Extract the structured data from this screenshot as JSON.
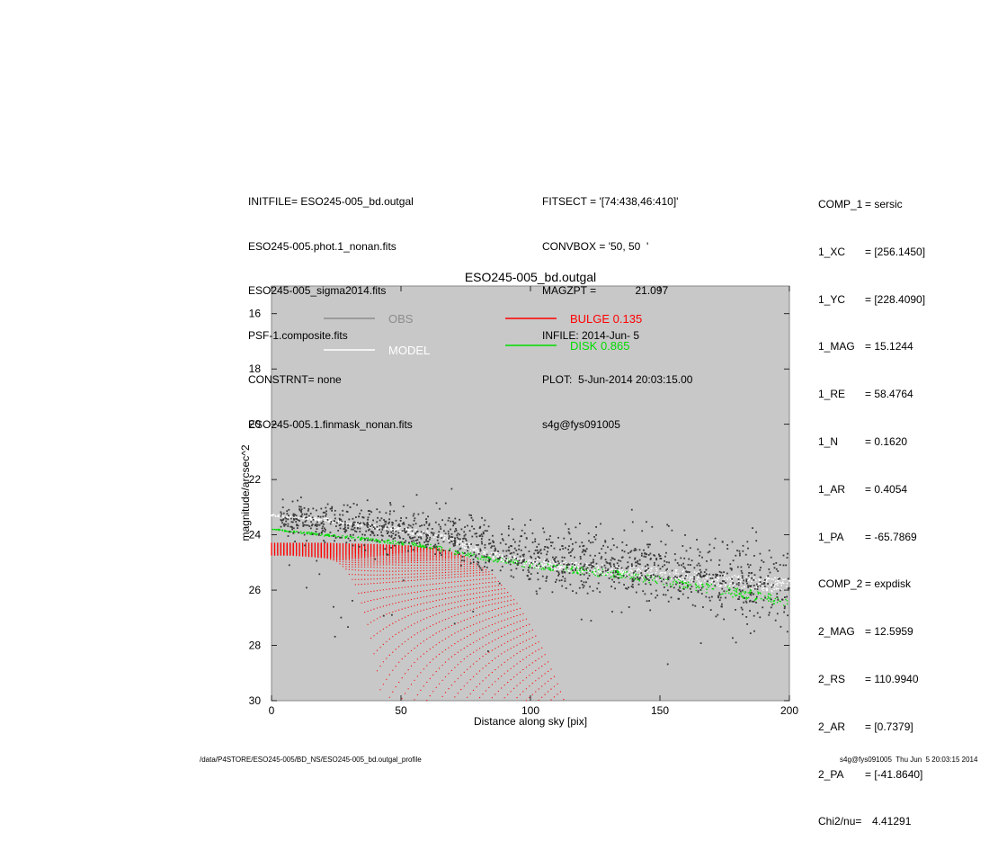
{
  "header": {
    "left": [
      "INITFILE= ESO245-005_bd.outgal",
      "ESO245-005.phot.1_nonan.fits",
      "ESO245-005_sigma2014.fits",
      "PSF-1.composite.fits",
      "CONSTRNT= none",
      "ESO245-005.1.finmask_nonan.fits"
    ],
    "middle": [
      "FITSECT = '[74:438,46:410]'",
      "CONVBOX = '50, 50  '",
      "MAGZPT =             21.097",
      "INFILE: 2014-Jun- 5",
      "PLOT:  5-Jun-2014 20:03:15.00",
      "s4g@fys091005"
    ]
  },
  "params": [
    {
      "key": "COMP_1",
      "val": "= sersic"
    },
    {
      "key": "1_XC",
      "val": "= [256.1450]"
    },
    {
      "key": "1_YC",
      "val": "= [228.4090]"
    },
    {
      "key": "1_MAG",
      "val": "= 15.1244"
    },
    {
      "key": "1_RE",
      "val": "= 58.4764"
    },
    {
      "key": "1_N",
      "val": "= 0.1620"
    },
    {
      "key": "1_AR",
      "val": "= 0.4054"
    },
    {
      "key": "1_PA",
      "val": "= -65.7869"
    },
    {
      "key": "COMP_2",
      "val": "= expdisk"
    },
    {
      "key": "2_MAG",
      "val": "= 12.5959"
    },
    {
      "key": "2_RS",
      "val": "= 110.9940"
    },
    {
      "key": "2_AR",
      "val": "= [0.7379]"
    },
    {
      "key": "2_PA",
      "val": "= [-41.8640]"
    },
    {
      "key": "Chi2/nu=",
      "val": "4.41291"
    }
  ],
  "footer": {
    "left": "/data/P4STORE/ESO245-005/BD_NS/ESO245-005_bd.outgal_profile",
    "right": "s4g@fys091005  Thu Jun  5 20:03:15 2014"
  },
  "chart_data": {
    "type": "scatter",
    "title": "ESO245-005_bd.outgal",
    "xlabel": "Distance along sky [pix]",
    "ylabel": "magnitude/arcsec^2",
    "xlim": [
      0,
      200
    ],
    "ylim": [
      30,
      15
    ],
    "y_inverted": true,
    "x_ticks": [
      0,
      50,
      100,
      150,
      200
    ],
    "y_ticks": [
      16,
      18,
      20,
      22,
      24,
      26,
      28,
      30
    ],
    "background": "#c8c8c8",
    "legend": [
      {
        "label": "OBS",
        "color": "#8c8c8c"
      },
      {
        "label": "MODEL",
        "color": "#ffffff"
      },
      {
        "label": "BULGE  0.135",
        "color": "#ff0000"
      },
      {
        "label": "DISK  0.865",
        "color": "#00dd00"
      }
    ],
    "series": [
      {
        "name": "OBS",
        "color": "#3a3a3a",
        "x": [
          5,
          20,
          30,
          40,
          50,
          60,
          70,
          80,
          90,
          100,
          110,
          120,
          130,
          140,
          150,
          160,
          170,
          180,
          190,
          200
        ],
        "y": [
          23.4,
          23.5,
          23.6,
          23.7,
          23.8,
          23.9,
          24.0,
          24.3,
          24.6,
          24.8,
          24.9,
          25.0,
          25.1,
          25.2,
          25.3,
          25.4,
          25.5,
          25.6,
          25.7,
          25.8
        ]
      },
      {
        "name": "MODEL",
        "color": "#ffffff",
        "x": [
          0,
          20,
          40,
          60,
          70,
          80,
          90,
          100,
          120,
          140,
          160,
          180,
          200
        ],
        "y": [
          23.3,
          23.45,
          23.7,
          23.95,
          24.2,
          24.55,
          24.85,
          25.0,
          25.2,
          25.35,
          25.5,
          25.7,
          25.85
        ]
      },
      {
        "name": "BULGE  0.135",
        "color": "#ff0000",
        "x": [
          0,
          20,
          40,
          55,
          65,
          75,
          85,
          95,
          100,
          105,
          110,
          113
        ],
        "y": [
          24.3,
          24.3,
          24.35,
          24.4,
          24.5,
          24.8,
          25.4,
          26.5,
          27.3,
          28.2,
          29.3,
          30.0
        ]
      },
      {
        "name": "DISK  0.865",
        "color": "#00dd00",
        "x": [
          0,
          40,
          60,
          80,
          100,
          120,
          140,
          160,
          180,
          200
        ],
        "y": [
          23.8,
          24.2,
          24.4,
          24.8,
          25.1,
          25.3,
          25.5,
          25.8,
          26.1,
          26.4
        ]
      }
    ]
  }
}
